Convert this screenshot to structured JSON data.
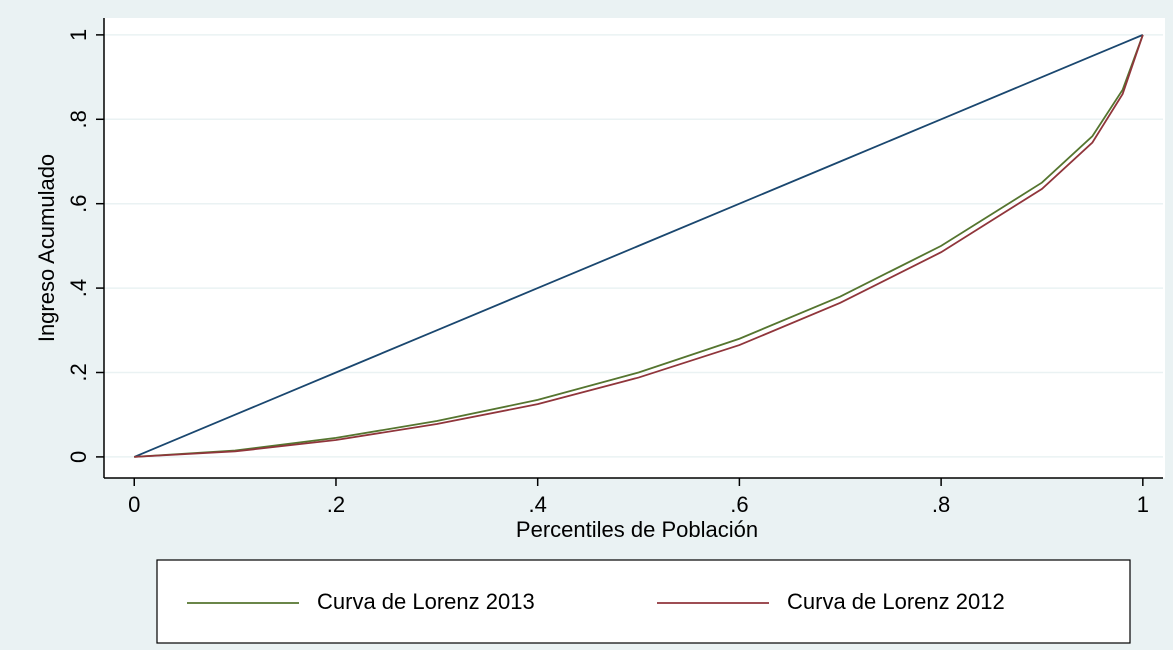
{
  "chart_data": {
    "type": "line",
    "xlabel": "Percentiles de Población",
    "ylabel": "Ingreso Acumulado",
    "x": [
      0,
      0.1,
      0.2,
      0.3,
      0.4,
      0.5,
      0.6,
      0.7,
      0.8,
      0.9,
      0.95,
      0.98,
      1
    ],
    "series": [
      {
        "color": "#1a476f",
        "values": [
          0,
          0.1,
          0.2,
          0.3,
          0.4,
          0.5,
          0.6,
          0.7,
          0.8,
          0.9,
          0.95,
          0.98,
          1
        ]
      },
      {
        "name": "Curva de Lorenz 2013",
        "color": "#55752f",
        "values": [
          0,
          0.015,
          0.045,
          0.085,
          0.135,
          0.2,
          0.28,
          0.38,
          0.5,
          0.65,
          0.76,
          0.87,
          1
        ]
      },
      {
        "name": "Curva de Lorenz 2012",
        "color": "#90353b",
        "values": [
          0,
          0.013,
          0.04,
          0.078,
          0.125,
          0.188,
          0.265,
          0.365,
          0.485,
          0.635,
          0.745,
          0.86,
          1
        ]
      }
    ],
    "xlim": [
      -0.03,
      1.02
    ],
    "ylim": [
      -0.05,
      1.04
    ],
    "xticks": [
      0,
      {
        "value": 0.2,
        "label": ".2"
      },
      {
        "value": 0.4,
        "label": ".4"
      },
      {
        "value": 0.6,
        "label": ".6"
      },
      {
        "value": 0.8,
        "label": ".8"
      },
      1
    ],
    "yticks": [
      0,
      {
        "value": 0.2,
        "label": ".2"
      },
      {
        "value": 0.4,
        "label": ".4"
      },
      {
        "value": 0.6,
        "label": ".6"
      },
      {
        "value": 0.8,
        "label": ".8"
      },
      1
    ],
    "grid": true,
    "legend": "bottom"
  }
}
